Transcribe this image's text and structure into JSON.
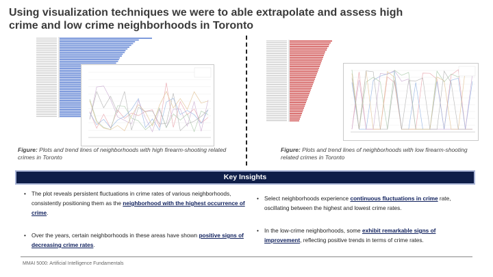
{
  "slide": {
    "title": "Using visualization techniques we were to able extrapolate and assess high crime and low crime neighborhoods in Toronto",
    "footer": "MMAI 5000: Artificial Intelligence Fundamentals"
  },
  "left_figure": {
    "caption_label": "Figure:",
    "caption_text": " Plots and trend lines of neighborhoods with high firearm-shooting related crimes in Toronto",
    "bar_color": "#6f8fd8",
    "bar_values": [
      98,
      84,
      80,
      78,
      76,
      74,
      72,
      70,
      69,
      67,
      66,
      64,
      63,
      62,
      60,
      59,
      58,
      57,
      56,
      55,
      54,
      53,
      52,
      51,
      50,
      49,
      48,
      47,
      46,
      45,
      44,
      43,
      42,
      41,
      40,
      39,
      38,
      37,
      36,
      35,
      34,
      33,
      32,
      31,
      30
    ],
    "line_colors": [
      "#e8a0a8",
      "#8fb0e0",
      "#c9a9d0",
      "#a8c8a8",
      "#e0c090",
      "#b0b0b0"
    ]
  },
  "right_figure": {
    "caption_label": "Figure:",
    "caption_text": " Plots and trend lines of neighborhoods with low firearm-shooting related crimes in Toronto",
    "bar_color": "#d76a6a",
    "bar_values": [
      62,
      60,
      58,
      57,
      55,
      54,
      52,
      51,
      50,
      49,
      48,
      47,
      46,
      45,
      44,
      43,
      42,
      41,
      40,
      39,
      38,
      37,
      36,
      35,
      34,
      33,
      32,
      31,
      30,
      29,
      28,
      27,
      26,
      25,
      24,
      23,
      22,
      21,
      20,
      19,
      18,
      17,
      16,
      15,
      14
    ],
    "line_colors": [
      "#e8a0a8",
      "#8fb0e0",
      "#c9a9d0",
      "#a8c8a8",
      "#e0c090",
      "#b0b0b0"
    ]
  },
  "insights": {
    "heading": "Key Insights",
    "left": [
      {
        "pre": "The plot reveals persistent fluctuations in crime rates of various neighborhoods, consistently positioning them as the ",
        "highlight": "neighborhood with the highest occurrence of crime",
        "post": "."
      },
      {
        "pre": "Over the years, certain neighborhoods in these areas have shown ",
        "highlight": "positive signs of decreasing crime rates",
        "post": "."
      }
    ],
    "right": [
      {
        "pre": "Select neighborhoods experience ",
        "highlight": "continuous fluctuations in crime",
        "post": " rate, oscillating between the highest and lowest crime rates."
      },
      {
        "pre": "In the low-crime neighborhoods, some ",
        "highlight": "exhibit remarkable signs of improvement",
        "post": ", reflecting positive trends in terms of crime rates."
      }
    ]
  }
}
